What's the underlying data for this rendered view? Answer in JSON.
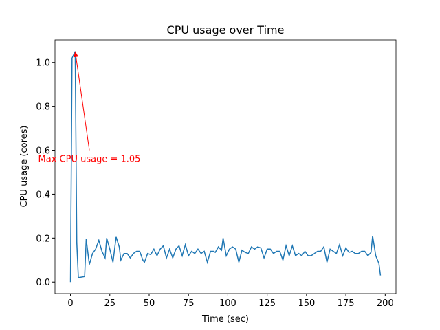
{
  "chart_data": {
    "type": "line",
    "title": "CPU usage over Time",
    "x_label": "Time (sec)",
    "y_label": "CPU usage (cores)",
    "x": [
      0,
      1,
      3,
      4,
      5,
      9,
      10,
      12,
      14,
      16,
      18,
      20,
      22,
      23,
      25,
      27,
      29,
      31,
      32,
      34,
      36,
      38,
      40,
      42,
      44,
      46,
      47,
      49,
      51,
      53,
      55,
      57,
      59,
      61,
      63,
      65,
      67,
      69,
      71,
      73,
      75,
      77,
      79,
      81,
      83,
      85,
      87,
      89,
      91,
      92,
      94,
      96,
      97,
      99,
      101,
      103,
      105,
      107,
      109,
      111,
      113,
      115,
      117,
      119,
      121,
      123,
      125,
      127,
      129,
      131,
      133,
      135,
      137,
      139,
      141,
      143,
      145,
      147,
      149,
      151,
      153,
      155,
      157,
      159,
      161,
      163,
      165,
      167,
      169,
      171,
      173,
      175,
      177,
      179,
      181,
      183,
      185,
      187,
      189,
      191,
      192,
      194,
      196,
      197
    ],
    "values": [
      0.0,
      1.02,
      1.05,
      0.18,
      0.02,
      0.025,
      0.195,
      0.08,
      0.13,
      0.15,
      0.19,
      0.14,
      0.11,
      0.2,
      0.15,
      0.09,
      0.205,
      0.16,
      0.1,
      0.13,
      0.13,
      0.11,
      0.13,
      0.14,
      0.14,
      0.1,
      0.09,
      0.13,
      0.125,
      0.15,
      0.12,
      0.15,
      0.165,
      0.11,
      0.15,
      0.11,
      0.15,
      0.165,
      0.12,
      0.17,
      0.12,
      0.14,
      0.13,
      0.15,
      0.13,
      0.14,
      0.09,
      0.14,
      0.14,
      0.135,
      0.16,
      0.145,
      0.2,
      0.12,
      0.15,
      0.16,
      0.15,
      0.09,
      0.145,
      0.135,
      0.13,
      0.16,
      0.15,
      0.16,
      0.155,
      0.11,
      0.15,
      0.15,
      0.13,
      0.14,
      0.14,
      0.1,
      0.165,
      0.12,
      0.165,
      0.12,
      0.13,
      0.12,
      0.14,
      0.12,
      0.12,
      0.13,
      0.14,
      0.14,
      0.16,
      0.09,
      0.15,
      0.14,
      0.13,
      0.17,
      0.12,
      0.155,
      0.135,
      0.14,
      0.13,
      0.13,
      0.14,
      0.14,
      0.12,
      0.135,
      0.21,
      0.12,
      0.085,
      0.03
    ],
    "color": "#1f77b4",
    "xlim": [
      -9.85,
      206.85
    ],
    "xticks": [
      0,
      25,
      50,
      75,
      100,
      125,
      150,
      175,
      200
    ],
    "ylim": [
      -0.0525,
      1.1025
    ],
    "yticks": [
      {
        "value": 0,
        "label": "0.0"
      },
      0.2,
      0.4,
      0.6,
      0.8,
      {
        "value": 1,
        "label": "1.0"
      }
    ],
    "grid": false,
    "annotation": {
      "text": "Max CPU usage = 1.05",
      "xy": [
        3,
        1.05
      ],
      "xytext": [
        12,
        0.6
      ],
      "color": "#ff0000"
    }
  }
}
